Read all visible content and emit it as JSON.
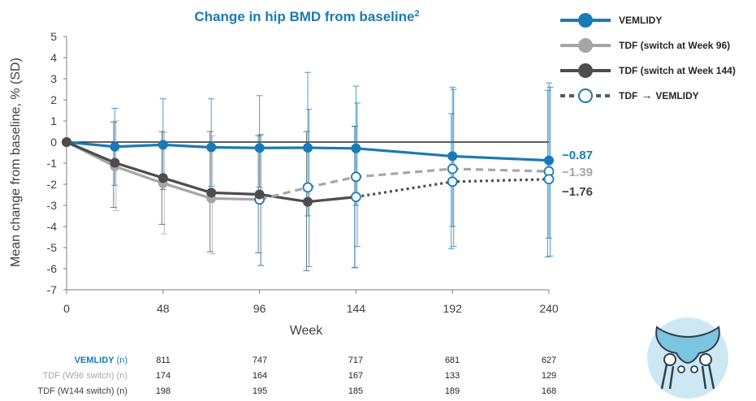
{
  "chart_data": {
    "type": "line",
    "title": "Change in hip BMD from baseline",
    "title_superscript": "2",
    "xlabel": "Week",
    "ylabel": "Mean change from baseline, % (SD)",
    "xlim": [
      0,
      240
    ],
    "ylim": [
      -7,
      5
    ],
    "x_ticks": [
      0,
      48,
      96,
      144,
      192,
      240
    ],
    "y_ticks": [
      5,
      4,
      3,
      2,
      1,
      0,
      -1,
      -2,
      -3,
      -4,
      -5,
      -6,
      -7
    ],
    "grid": false,
    "legend_position": "top-right",
    "colors": {
      "vemlidy": "#1a7ab5",
      "tdf96": "#a6a6a6",
      "tdf144": "#4d4d4d"
    },
    "series": [
      {
        "name": "VEMLIDY",
        "key": "vemlidy",
        "x": [
          0,
          24,
          48,
          72,
          96,
          120,
          144,
          192,
          240
        ],
        "y": [
          0,
          -0.22,
          -0.13,
          -0.25,
          -0.28,
          -0.27,
          -0.3,
          -0.67,
          -0.87
        ],
        "err_low": [
          0,
          -2.05,
          -2.25,
          -2.1,
          -2.15,
          -3.5,
          -3.0,
          -4.0,
          -4.55
        ],
        "err_high": [
          0,
          1.6,
          2.05,
          2.05,
          2.2,
          3.3,
          2.65,
          2.6,
          2.8
        ]
      },
      {
        "name": "TDF (switch at Week 96)",
        "key": "tdf96",
        "x": [
          0,
          24,
          48,
          72,
          96
        ],
        "y": [
          0,
          -1.15,
          -1.95,
          -2.67,
          -2.72
        ],
        "err_low": [
          0,
          -3.25,
          -4.35,
          -5.3,
          -5.85
        ],
        "err_high": [
          0,
          1.0,
          0.45,
          0.3,
          0.35
        ]
      },
      {
        "name": "TDF (switch at Week 144)",
        "key": "tdf144",
        "x": [
          0,
          24,
          48,
          72,
          96,
          120,
          144
        ],
        "y": [
          0,
          -0.98,
          -1.7,
          -2.4,
          -2.48,
          -2.83,
          -2.6
        ],
        "err_low": [
          0,
          -3.1,
          -3.9,
          -5.2,
          -5.25,
          -6.1,
          -5.95
        ],
        "err_high": [
          0,
          0.95,
          0.5,
          0.5,
          0.3,
          0.5,
          0.75
        ]
      },
      {
        "name": "TDF → VEMLIDY (from Week 96)",
        "key": "tdf96",
        "switched": true,
        "x": [
          96,
          120,
          144,
          192,
          240
        ],
        "y": [
          -2.72,
          -2.15,
          -1.65,
          -1.27,
          -1.39
        ],
        "err_low": [
          -5.85,
          -5.9,
          -4.95,
          -4.95,
          -5.4
        ],
        "err_high": [
          0.35,
          1.55,
          1.85,
          2.5,
          2.6
        ]
      },
      {
        "name": "TDF → VEMLIDY (from Week 144)",
        "key": "tdf144",
        "switched": true,
        "x": [
          144,
          192,
          240
        ],
        "y": [
          -2.6,
          -1.88,
          -1.76
        ],
        "err_low": [
          -5.95,
          -5.05,
          -5.45
        ],
        "err_high": [
          0.75,
          1.35,
          2.45
        ]
      }
    ],
    "legend": [
      {
        "label": "VEMLIDY",
        "style": "solid",
        "color": "#1a7ab5",
        "marker": "filled"
      },
      {
        "label": "TDF (switch at Week 96)",
        "style": "solid",
        "color": "#a6a6a6",
        "marker": "filled"
      },
      {
        "label": "TDF (switch at Week 144)",
        "style": "solid",
        "color": "#4d4d4d",
        "marker": "filled"
      },
      {
        "label": "TDF",
        "arrow": "→",
        "label_after": "VEMLIDY",
        "style": "dashed",
        "color": "#1a7ab5",
        "marker": "open"
      }
    ],
    "end_labels": [
      {
        "text": "−0.87",
        "color": "#1a7ab5",
        "y": -0.87
      },
      {
        "text": "−1.39",
        "color": "#a6a6a6",
        "y": -1.39
      },
      {
        "text": "−1.76",
        "color": "#404040",
        "y": -1.76
      }
    ],
    "n_table": {
      "weeks": [
        48,
        96,
        144,
        192,
        240
      ],
      "rows": [
        {
          "label": "VEMLIDY",
          "suffix": " (n)",
          "color": "#1a7ab5",
          "bold": true,
          "values": [
            "811",
            "747",
            "717",
            "681",
            "627"
          ]
        },
        {
          "label": "TDF (W96 switch) (n)",
          "suffix": "",
          "color": "#a6a6a6",
          "bold": false,
          "values": [
            "174",
            "164",
            "167",
            "133",
            "129"
          ]
        },
        {
          "label": "TDF (W144 switch) (n)",
          "suffix": "",
          "color": "#404040",
          "bold": false,
          "values": [
            "198",
            "195",
            "185",
            "189",
            "168"
          ]
        }
      ]
    }
  },
  "decor": {
    "hip_icon": "hip-bone-icon",
    "hip_icon_bg": "#cde8f3",
    "hip_icon_fill": "#7cc4df"
  }
}
